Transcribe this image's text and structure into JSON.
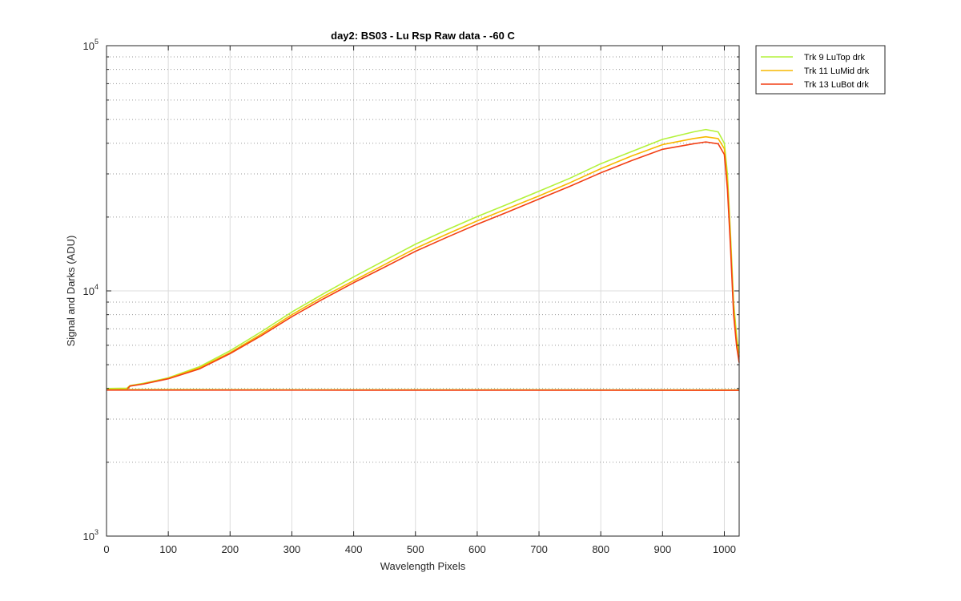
{
  "chart_data": {
    "type": "line",
    "title": "day2: BS03 - Lu Rsp Raw data - -60 C",
    "xlabel": "Wavelength Pixels",
    "ylabel": "Signal and Darks (ADU)",
    "xlim": [
      0,
      1024
    ],
    "ylim": [
      1000,
      100000
    ],
    "yscale": "log",
    "grid": true,
    "legend_position": "outside-top-right",
    "x_ticks": [
      "0",
      "100",
      "200",
      "300",
      "400",
      "500",
      "600",
      "700",
      "800",
      "900",
      "1000"
    ],
    "y_ticks": [
      {
        "base": "10",
        "exp": "3",
        "value": 1000
      },
      {
        "base": "10",
        "exp": "4",
        "value": 10000
      },
      {
        "base": "10",
        "exp": "5",
        "value": 100000
      }
    ],
    "series": [
      {
        "name": "Trk 9 LuTop drk",
        "color": "#b3f23b",
        "points": [
          [
            0,
            4000
          ],
          [
            33,
            4010
          ],
          [
            38,
            4110
          ],
          [
            60,
            4200
          ],
          [
            100,
            4420
          ],
          [
            150,
            4900
          ],
          [
            200,
            5700
          ],
          [
            250,
            6800
          ],
          [
            300,
            8200
          ],
          [
            350,
            9700
          ],
          [
            400,
            11400
          ],
          [
            450,
            13300
          ],
          [
            500,
            15500
          ],
          [
            550,
            17700
          ],
          [
            600,
            20100
          ],
          [
            650,
            22600
          ],
          [
            700,
            25500
          ],
          [
            750,
            28800
          ],
          [
            800,
            33000
          ],
          [
            850,
            37000
          ],
          [
            900,
            41500
          ],
          [
            950,
            44500
          ],
          [
            970,
            45500
          ],
          [
            990,
            44500
          ],
          [
            1000,
            40000
          ],
          [
            1005,
            30000
          ],
          [
            1010,
            17000
          ],
          [
            1015,
            9000
          ],
          [
            1020,
            6500
          ],
          [
            1024,
            5600
          ]
        ]
      },
      {
        "name": "Trk 11 LuMid drk",
        "color": "#f7b900",
        "points": [
          [
            0,
            3970
          ],
          [
            33,
            3980
          ],
          [
            38,
            4100
          ],
          [
            60,
            4180
          ],
          [
            100,
            4400
          ],
          [
            150,
            4850
          ],
          [
            200,
            5600
          ],
          [
            250,
            6650
          ],
          [
            300,
            8000
          ],
          [
            350,
            9450
          ],
          [
            400,
            11000
          ],
          [
            450,
            12800
          ],
          [
            500,
            14900
          ],
          [
            550,
            17000
          ],
          [
            600,
            19300
          ],
          [
            650,
            21700
          ],
          [
            700,
            24400
          ],
          [
            750,
            27600
          ],
          [
            800,
            31500
          ],
          [
            850,
            35500
          ],
          [
            900,
            39500
          ],
          [
            950,
            41800
          ],
          [
            970,
            42500
          ],
          [
            990,
            41800
          ],
          [
            1000,
            38000
          ],
          [
            1005,
            28000
          ],
          [
            1010,
            16000
          ],
          [
            1015,
            8500
          ],
          [
            1020,
            6200
          ],
          [
            1024,
            5400
          ]
        ]
      },
      {
        "name": "Trk 13 LuBot drk",
        "color": "#f23f14",
        "points": [
          [
            0,
            3950
          ],
          [
            33,
            3960
          ],
          [
            38,
            4090
          ],
          [
            60,
            4170
          ],
          [
            100,
            4380
          ],
          [
            150,
            4800
          ],
          [
            200,
            5550
          ],
          [
            250,
            6550
          ],
          [
            300,
            7850
          ],
          [
            350,
            9250
          ],
          [
            400,
            10800
          ],
          [
            450,
            12500
          ],
          [
            500,
            14500
          ],
          [
            550,
            16500
          ],
          [
            600,
            18700
          ],
          [
            650,
            21000
          ],
          [
            700,
            23700
          ],
          [
            750,
            26700
          ],
          [
            800,
            30300
          ],
          [
            850,
            34000
          ],
          [
            900,
            37800
          ],
          [
            950,
            39800
          ],
          [
            970,
            40500
          ],
          [
            990,
            39800
          ],
          [
            1000,
            36000
          ],
          [
            1005,
            26000
          ],
          [
            1010,
            15000
          ],
          [
            1015,
            8000
          ],
          [
            1020,
            5900
          ],
          [
            1024,
            5100
          ]
        ]
      },
      {
        "color": "#b3f23b",
        "points": [
          [
            0,
            3960
          ],
          [
            200,
            3955
          ],
          [
            400,
            3950
          ],
          [
            600,
            3950
          ],
          [
            800,
            3948
          ],
          [
            1024,
            3945
          ]
        ]
      },
      {
        "color": "#f7b900",
        "points": [
          [
            0,
            3948
          ],
          [
            200,
            3945
          ],
          [
            400,
            3942
          ],
          [
            600,
            3942
          ],
          [
            800,
            3940
          ],
          [
            1024,
            3938
          ]
        ]
      },
      {
        "color": "#f23f14",
        "points": [
          [
            0,
            3940
          ],
          [
            200,
            3938
          ],
          [
            400,
            3936
          ],
          [
            600,
            3936
          ],
          [
            800,
            3934
          ],
          [
            1024,
            3932
          ]
        ]
      }
    ]
  }
}
